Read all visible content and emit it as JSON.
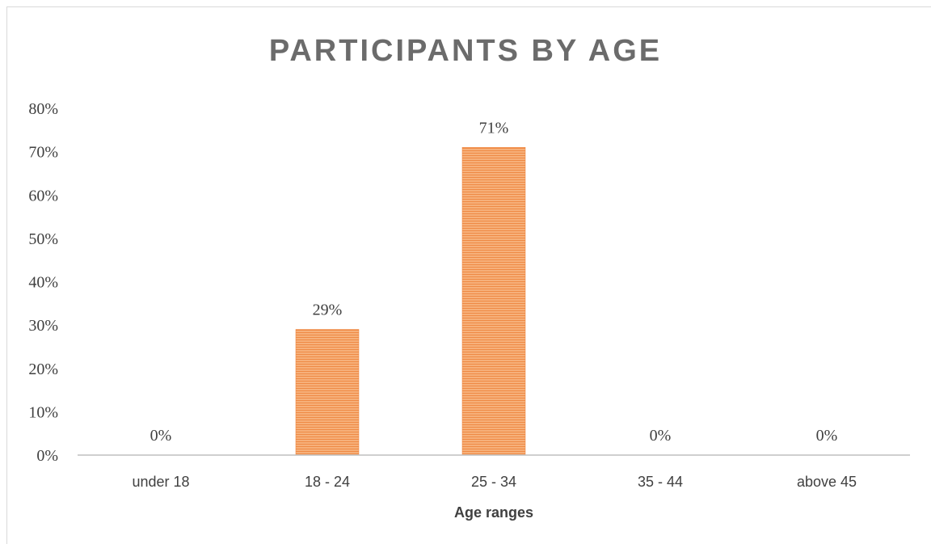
{
  "chart_data": {
    "type": "bar",
    "title": "PARTICIPANTS BY AGE",
    "xlabel": "Age ranges",
    "ylabel": "",
    "categories": [
      "under 18",
      "18 - 24",
      "25 - 34",
      "35 - 44",
      "above 45"
    ],
    "values": [
      0,
      0.29,
      0.71,
      0,
      0
    ],
    "data_labels": [
      "0%",
      "29%",
      "71%",
      "0%",
      "0%"
    ],
    "ylim": [
      0,
      0.8
    ],
    "yticks": [
      0,
      0.1,
      0.2,
      0.3,
      0.4,
      0.5,
      0.6,
      0.7,
      0.8
    ],
    "ytick_labels": [
      "0%",
      "10%",
      "20%",
      "30%",
      "40%",
      "50%",
      "60%",
      "70%",
      "80%"
    ],
    "grid": false,
    "legend": "none",
    "bar_color": "#f4a460",
    "bar_stripe_color": "#ed7d31"
  }
}
